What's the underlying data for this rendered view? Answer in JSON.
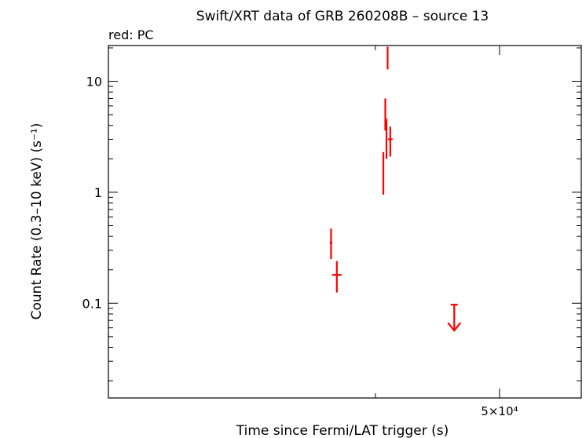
{
  "chart_data": {
    "type": "scatter",
    "title": "Swift/XRT data of GRB 260208B – source 13",
    "subtitle": "red: PC",
    "xlabel": "Time since Fermi/LAT trigger (s)",
    "ylabel": "Count Rate (0.3–10 keV) (s⁻¹)",
    "x_scale": "log",
    "y_scale": "log",
    "xlim": [
      10000,
      70000
    ],
    "ylim": [
      0.014,
      21
    ],
    "x_tick_labels": [
      {
        "value": 50000,
        "label": "5×10⁴"
      }
    ],
    "y_tick_labels": [
      {
        "value": 0.1,
        "label": "0.1"
      },
      {
        "value": 1,
        "label": "1"
      },
      {
        "value": 10,
        "label": "10"
      }
    ],
    "grid": false,
    "series": [
      {
        "color": "#ff0000",
        "points": [
          {
            "x": 25000,
            "xerr": [
              140,
              140
            ],
            "y": 0.35,
            "yerr": [
              0.25,
              0.47
            ]
          },
          {
            "x": 25600,
            "xerr": [
              500,
              500
            ],
            "y": 0.18,
            "yerr": [
              0.125,
              0.24
            ]
          },
          {
            "x": 31000,
            "xerr": [
              60,
              60
            ],
            "y": 1.7,
            "yerr": [
              0.95,
              2.3
            ]
          },
          {
            "x": 31250,
            "xerr": [
              60,
              60
            ],
            "y": 5.2,
            "yerr": [
              3.6,
              7.0
            ]
          },
          {
            "x": 31400,
            "xerr": [
              60,
              60
            ],
            "y": 3.4,
            "yerr": [
              2.0,
              4.6
            ]
          },
          {
            "x": 31550,
            "xerr": [
              90,
              90
            ],
            "y": 16.5,
            "yerr": [
              12.8,
              20.5
            ]
          },
          {
            "x": 31900,
            "xerr": [
              300,
              300
            ],
            "y": 3.0,
            "yerr": [
              2.1,
              3.9
            ]
          }
        ]
      }
    ],
    "upper_limits": [
      {
        "x": 41500,
        "xerr": [
          600,
          600
        ],
        "y": 0.097
      }
    ]
  }
}
